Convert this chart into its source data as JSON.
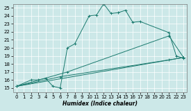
{
  "xlabel": "Humidex (Indice chaleur)",
  "background_color": "#cce8e8",
  "line_color": "#1a7a6e",
  "xlim": [
    -0.5,
    23.5
  ],
  "ylim": [
    14.5,
    25.5
  ],
  "yticks": [
    15,
    16,
    17,
    18,
    19,
    20,
    21,
    22,
    23,
    24,
    25
  ],
  "xticks": [
    0,
    1,
    2,
    3,
    4,
    5,
    6,
    7,
    8,
    9,
    10,
    11,
    12,
    13,
    14,
    15,
    16,
    17,
    18,
    19,
    20,
    21,
    22,
    23
  ],
  "series1_x": [
    0,
    2,
    3,
    4,
    5,
    6,
    7,
    8,
    10,
    11,
    12,
    13,
    14,
    15,
    16,
    17,
    21,
    22,
    23
  ],
  "series1_y": [
    15.2,
    16.0,
    16.0,
    16.2,
    15.2,
    15.0,
    20.0,
    20.5,
    24.0,
    24.1,
    25.5,
    24.3,
    24.4,
    24.7,
    23.2,
    23.3,
    21.9,
    19.0,
    18.7
  ],
  "series2_x": [
    0,
    7,
    21,
    23
  ],
  "series2_y": [
    15.2,
    17.0,
    21.5,
    18.8
  ],
  "series3_x": [
    0,
    23
  ],
  "series3_y": [
    15.2,
    18.8
  ],
  "series4_x": [
    0,
    6,
    21,
    23
  ],
  "series4_y": [
    15.2,
    16.4,
    18.5,
    18.8
  ]
}
